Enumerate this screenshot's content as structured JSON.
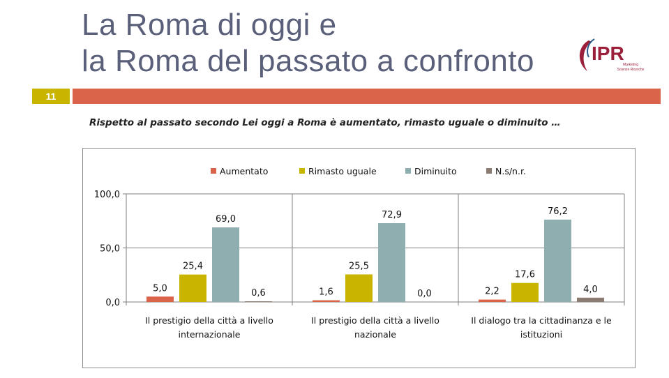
{
  "slide": {
    "title_line1": "La Roma di oggi e",
    "title_line2": "la Roma del passato a confronto",
    "number": "11",
    "question": "Rispetto al passato secondo Lei oggi a Roma è aumentato, rimasto uguale o diminuito …"
  },
  "logo": {
    "text": "IPR",
    "subtitle1": "Marketing",
    "subtitle2": "Scienze Ricerche",
    "color": "#9b1f3a"
  },
  "chart_data": {
    "type": "bar",
    "categories": [
      [
        "Il prestigio della città a livello",
        "internazionale"
      ],
      [
        "Il prestigio della città a livello",
        "nazionale"
      ],
      [
        "Il dialogo tra la cittadinanza e le",
        "istituzioni"
      ]
    ],
    "series": [
      {
        "name": "Aumentato",
        "color": "#d9644a",
        "values": [
          5.0,
          1.6,
          2.2
        ],
        "labels": [
          "5,0",
          "1,6",
          "2,2"
        ]
      },
      {
        "name": "Rimasto uguale",
        "color": "#c9b400",
        "values": [
          25.4,
          25.5,
          17.6
        ],
        "labels": [
          "25,4",
          "25,5",
          "17,6"
        ]
      },
      {
        "name": "Diminuito",
        "color": "#8faeb0",
        "values": [
          69.0,
          72.9,
          76.2
        ],
        "labels": [
          "69,0",
          "72,9",
          "76,2"
        ]
      },
      {
        "name": "N.s/n.r.",
        "color": "#8b7b73",
        "values": [
          0.6,
          0.0,
          4.0
        ],
        "labels": [
          "0,6",
          "0,0",
          "4,0"
        ]
      }
    ],
    "yticks": [
      {
        "value": 0,
        "label": "0,0"
      },
      {
        "value": 50,
        "label": "50,0"
      },
      {
        "value": 100,
        "label": "100,0"
      }
    ],
    "ylim": [
      0,
      100
    ],
    "grid": true,
    "legend": "top"
  }
}
